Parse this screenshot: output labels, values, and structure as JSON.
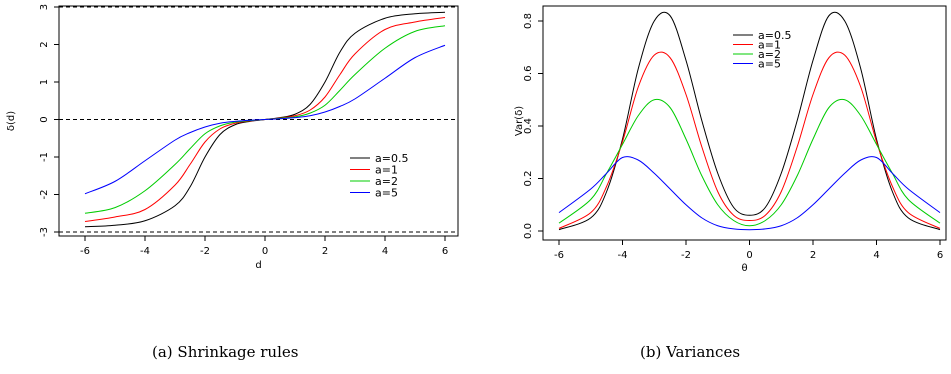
{
  "chart_data": [
    {
      "type": "line",
      "title": "",
      "xlabel": "d",
      "ylabel": "δ(d)",
      "xlim": [
        -6,
        6
      ],
      "ylim": [
        -3,
        3
      ],
      "xticks": [
        "-6",
        "-4",
        "-2",
        "0",
        "2",
        "4",
        "6"
      ],
      "yticks": [
        "-3",
        "-2",
        "-1",
        "0",
        "1",
        "2",
        "3"
      ],
      "reference_lines": [
        -3,
        0,
        3
      ],
      "legend_position": "right",
      "x": [
        -6,
        -5,
        -4,
        -3,
        -2.5,
        -2,
        -1.5,
        -1,
        -0.5,
        0,
        0.5,
        1,
        1.5,
        2,
        2.5,
        3,
        4,
        5,
        6
      ],
      "series": [
        {
          "name": "a=0.5",
          "color": "#000000",
          "values": [
            -2.86,
            -2.82,
            -2.7,
            -2.3,
            -1.8,
            -1.0,
            -0.4,
            -0.14,
            -0.05,
            0,
            0.05,
            0.14,
            0.4,
            1.0,
            1.8,
            2.3,
            2.7,
            2.82,
            2.86
          ]
        },
        {
          "name": "a=1",
          "color": "#ff0000",
          "values": [
            -2.72,
            -2.6,
            -2.4,
            -1.75,
            -1.2,
            -0.6,
            -0.25,
            -0.1,
            -0.04,
            0,
            0.04,
            0.1,
            0.25,
            0.6,
            1.2,
            1.75,
            2.4,
            2.6,
            2.72
          ]
        },
        {
          "name": "a=2",
          "color": "#00cc00",
          "values": [
            -2.5,
            -2.35,
            -1.9,
            -1.2,
            -0.78,
            -0.38,
            -0.17,
            -0.07,
            -0.03,
            0,
            0.03,
            0.07,
            0.17,
            0.38,
            0.78,
            1.2,
            1.9,
            2.35,
            2.5
          ]
        },
        {
          "name": "a=5",
          "color": "#0000ff",
          "values": [
            -1.98,
            -1.65,
            -1.1,
            -0.55,
            -0.35,
            -0.2,
            -0.1,
            -0.05,
            -0.02,
            0,
            0.02,
            0.05,
            0.1,
            0.2,
            0.35,
            0.55,
            1.1,
            1.65,
            1.98
          ]
        }
      ]
    },
    {
      "type": "line",
      "title": "",
      "xlabel": "θ",
      "ylabel": "Var(δ)",
      "xlim": [
        -6,
        6
      ],
      "ylim": [
        0,
        0.8
      ],
      "xticks": [
        "-6",
        "-4",
        "-2",
        "0",
        "2",
        "4",
        "6"
      ],
      "yticks": [
        "0.0",
        "0.2",
        "0.4",
        "0.6",
        "0.8"
      ],
      "legend_position": "top",
      "x": [
        -6,
        -5,
        -4.5,
        -4,
        -3.5,
        -3,
        -2.5,
        -2,
        -1.5,
        -1,
        -0.5,
        0,
        0.5,
        1,
        1.5,
        2,
        2.5,
        3,
        3.5,
        4,
        4.5,
        5,
        6
      ],
      "series": [
        {
          "name": "a=0.5",
          "color": "#000000",
          "values": [
            0.005,
            0.05,
            0.15,
            0.35,
            0.62,
            0.8,
            0.82,
            0.65,
            0.42,
            0.22,
            0.09,
            0.06,
            0.09,
            0.22,
            0.42,
            0.65,
            0.82,
            0.8,
            0.62,
            0.35,
            0.15,
            0.05,
            0.005
          ]
        },
        {
          "name": "a=1",
          "color": "#ff0000",
          "values": [
            0.01,
            0.07,
            0.17,
            0.34,
            0.55,
            0.67,
            0.66,
            0.52,
            0.32,
            0.15,
            0.06,
            0.04,
            0.06,
            0.15,
            0.32,
            0.52,
            0.66,
            0.67,
            0.55,
            0.34,
            0.17,
            0.07,
            0.01
          ]
        },
        {
          "name": "a=2",
          "color": "#00cc00",
          "values": [
            0.03,
            0.12,
            0.22,
            0.33,
            0.44,
            0.5,
            0.47,
            0.35,
            0.21,
            0.1,
            0.04,
            0.02,
            0.04,
            0.1,
            0.21,
            0.35,
            0.47,
            0.5,
            0.44,
            0.33,
            0.22,
            0.12,
            0.03
          ]
        },
        {
          "name": "a=5",
          "color": "#0000ff",
          "values": [
            0.07,
            0.16,
            0.22,
            0.28,
            0.27,
            0.22,
            0.16,
            0.1,
            0.05,
            0.02,
            0.008,
            0.005,
            0.008,
            0.02,
            0.05,
            0.1,
            0.16,
            0.22,
            0.27,
            0.28,
            0.22,
            0.16,
            0.07
          ]
        }
      ]
    }
  ],
  "captions": {
    "left": "(a)  Shrinkage rules",
    "right": "(b)  Variances"
  }
}
